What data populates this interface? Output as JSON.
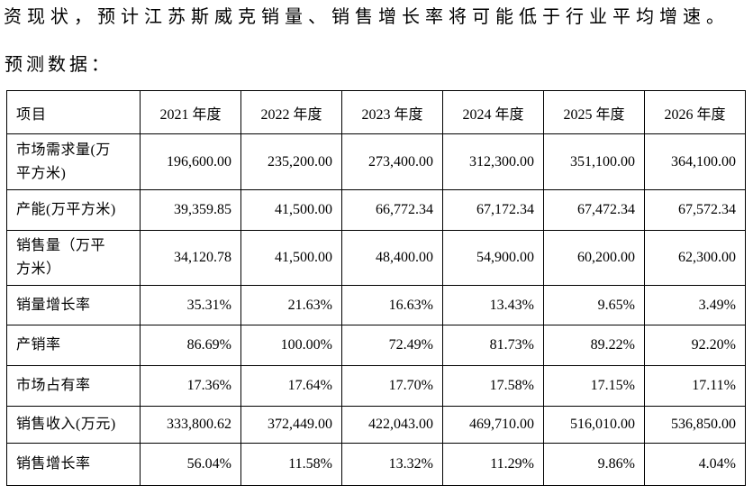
{
  "page": {
    "intro_text": "资现状，预计江苏斯威克销量、销售增长率将可能低于行业平均增速。",
    "section_label": "预测数据："
  },
  "table": {
    "headers": [
      "项目",
      "2021 年度",
      "2022 年度",
      "2023 年度",
      "2024 年度",
      "2025 年度",
      "2026 年度"
    ],
    "rows": [
      {
        "label": "市场需求量(万平方米)",
        "values": [
          "196,600.00",
          "235,200.00",
          "273,400.00",
          "312,300.00",
          "351,100.00",
          "364,100.00"
        ]
      },
      {
        "label": "产能(万平方米)",
        "values": [
          "39,359.85",
          "41,500.00",
          "66,772.34",
          "67,172.34",
          "67,472.34",
          "67,572.34"
        ]
      },
      {
        "label": "销售量（万平方米）",
        "values": [
          "34,120.78",
          "41,500.00",
          "48,400.00",
          "54,900.00",
          "60,200.00",
          "62,300.00"
        ]
      },
      {
        "label": "销量增长率",
        "values": [
          "35.31%",
          "21.63%",
          "16.63%",
          "13.43%",
          "9.65%",
          "3.49%"
        ]
      },
      {
        "label": "产销率",
        "values": [
          "86.69%",
          "100.00%",
          "72.49%",
          "81.73%",
          "89.22%",
          "92.20%"
        ]
      },
      {
        "label": "市场占有率",
        "values": [
          "17.36%",
          "17.64%",
          "17.70%",
          "17.58%",
          "17.15%",
          "17.11%"
        ]
      },
      {
        "label": "销售收入(万元)",
        "values": [
          "333,800.62",
          "372,449.00",
          "422,043.00",
          "469,710.00",
          "516,010.00",
          "536,850.00"
        ]
      },
      {
        "label": "销售增长率",
        "values": [
          "56.04%",
          "11.58%",
          "13.32%",
          "11.29%",
          "9.86%",
          "4.04%"
        ]
      }
    ]
  }
}
